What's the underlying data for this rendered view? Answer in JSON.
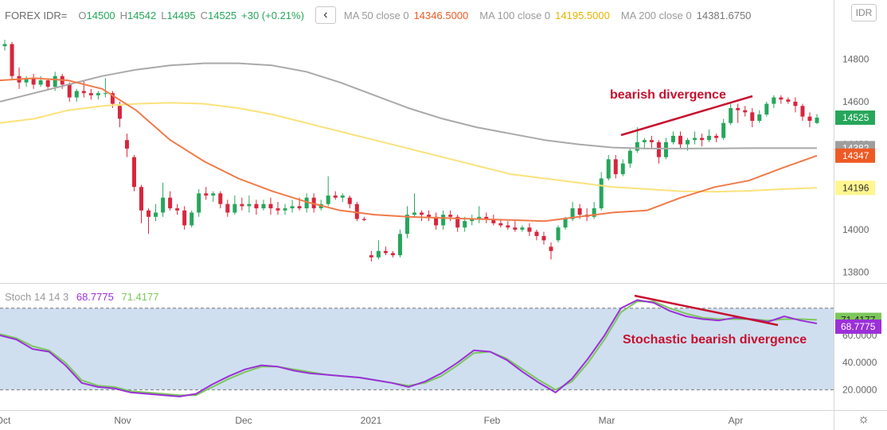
{
  "header": {
    "symbol": "FOREX IDR=",
    "o_label": "O",
    "o_value": "14500",
    "h_label": "H",
    "h_value": "14542",
    "l_label": "L",
    "l_value": "14495",
    "c_label": "C",
    "c_value": "14525",
    "change": "+30 (+0.21%)",
    "collapse_icon": "‹",
    "ma50_label": "MA 50 close 0",
    "ma50_value": "14346.5000",
    "ma100_label": "MA 100 close 0",
    "ma100_value": "14195.5000",
    "ma200_label": "MA 200 close 0",
    "ma200_value": "14381.6750",
    "currency_button": "IDR"
  },
  "colors": {
    "up": "#26a65b",
    "down": "#d7263d",
    "ma50": "#f07a4a",
    "ma100": "#fbe27a",
    "ma200": "#a9a9a9",
    "stoch_k": "#9b30d9",
    "stoch_d": "#7cc85a",
    "band": "#cfdff0",
    "annotation": "#c8102e",
    "badge_price": "#26a65b",
    "badge_ma200": "#9e9e9e",
    "badge_ma50": "#ee5a24",
    "badge_ma100": "#fff68f"
  },
  "stoch_header": {
    "label": "Stoch 14 14 3",
    "k_value": "68.7775",
    "d_value": "71.4177"
  },
  "annotations": {
    "price": "bearish divergence",
    "stoch": "Stochastic bearish divergence"
  },
  "gear_icon": "☼",
  "chart_data": [
    {
      "type": "candlestick",
      "x_ticks": [
        "Oct",
        "Nov",
        "Dec",
        "2021",
        "Feb",
        "Mar",
        "Apr"
      ],
      "y_ticks": [
        "14800",
        "14600",
        "14400",
        "14200",
        "14000",
        "13800"
      ],
      "ylim": [
        13750,
        14950
      ],
      "price_badges": {
        "last": "14525",
        "ma200": "14382",
        "ma50": "14347",
        "ma100": "14196"
      },
      "candles": [
        [
          14860,
          14890,
          14840,
          14870
        ],
        [
          14870,
          14880,
          14700,
          14720
        ],
        [
          14720,
          14760,
          14660,
          14690
        ],
        [
          14690,
          14720,
          14670,
          14710
        ],
        [
          14710,
          14730,
          14660,
          14680
        ],
        [
          14680,
          14720,
          14670,
          14700
        ],
        [
          14700,
          14710,
          14660,
          14670
        ],
        [
          14670,
          14740,
          14650,
          14720
        ],
        [
          14720,
          14730,
          14660,
          14680
        ],
        [
          14680,
          14690,
          14600,
          14620
        ],
        [
          14620,
          14660,
          14600,
          14650
        ],
        [
          14650,
          14700,
          14620,
          14640
        ],
        [
          14640,
          14660,
          14610,
          14630
        ],
        [
          14630,
          14650,
          14610,
          14640
        ],
        [
          14640,
          14710,
          14620,
          14640
        ],
        [
          14640,
          14650,
          14570,
          14590
        ],
        [
          14580,
          14600,
          14480,
          14520
        ],
        [
          14420,
          14450,
          14340,
          14380
        ],
        [
          14340,
          14350,
          14180,
          14200
        ],
        [
          14200,
          14210,
          14030,
          14090
        ],
        [
          14090,
          14100,
          13980,
          14060
        ],
        [
          14060,
          14120,
          14040,
          14080
        ],
        [
          14080,
          14220,
          14060,
          14150
        ],
        [
          14150,
          14180,
          14090,
          14100
        ],
        [
          14100,
          14120,
          14070,
          14090
        ],
        [
          14090,
          14110,
          14000,
          14020
        ],
        [
          14020,
          14090,
          14010,
          14080
        ],
        [
          14080,
          14190,
          14060,
          14170
        ],
        [
          14170,
          14200,
          14140,
          14160
        ],
        [
          14160,
          14180,
          14130,
          14170
        ],
        [
          14170,
          14180,
          14100,
          14120
        ],
        [
          14120,
          14140,
          14060,
          14080
        ],
        [
          14080,
          14160,
          14070,
          14120
        ],
        [
          14120,
          14150,
          14090,
          14110
        ],
        [
          14110,
          14160,
          14080,
          14120
        ],
        [
          14120,
          14140,
          14070,
          14100
        ],
        [
          14100,
          14140,
          14090,
          14120
        ],
        [
          14120,
          14150,
          14070,
          14100
        ],
        [
          14100,
          14130,
          14070,
          14090
        ],
        [
          14090,
          14120,
          14070,
          14100
        ],
        [
          14100,
          14140,
          14080,
          14110
        ],
        [
          14110,
          14150,
          14090,
          14100
        ],
        [
          14100,
          14170,
          14080,
          14150
        ],
        [
          14150,
          14170,
          14080,
          14100
        ],
        [
          14100,
          14140,
          14090,
          14120
        ],
        [
          14120,
          14250,
          14110,
          14160
        ],
        [
          14160,
          14180,
          14140,
          14150
        ],
        [
          14150,
          14170,
          14130,
          14160
        ],
        [
          14150,
          14160,
          14100,
          14120
        ],
        [
          14120,
          14130,
          14040,
          14050
        ],
        [
          14050,
          14060,
          14040,
          14045
        ],
        [
          13880,
          13900,
          13850,
          13870
        ],
        [
          13870,
          13950,
          13860,
          13900
        ],
        [
          13900,
          13920,
          13880,
          13890
        ],
        [
          13890,
          13900,
          13870,
          13880
        ],
        [
          13880,
          14000,
          13870,
          13980
        ],
        [
          13980,
          14110,
          13960,
          14070
        ],
        [
          14070,
          14170,
          14060,
          14080
        ],
        [
          14080,
          14090,
          14040,
          14070
        ],
        [
          14070,
          14090,
          14040,
          14060
        ],
        [
          14060,
          14080,
          14000,
          14020
        ],
        [
          14020,
          14090,
          14000,
          14070
        ],
        [
          14070,
          14090,
          14040,
          14060
        ],
        [
          14060,
          14070,
          13990,
          14010
        ],
        [
          14010,
          14060,
          13990,
          14040
        ],
        [
          14040,
          14070,
          14020,
          14050
        ],
        [
          14050,
          14110,
          14030,
          14060
        ],
        [
          14060,
          14080,
          14030,
          14050
        ],
        [
          14050,
          14070,
          14020,
          14030
        ],
        [
          14030,
          14050,
          14010,
          14020
        ],
        [
          14020,
          14040,
          14000,
          14010
        ],
        [
          14010,
          14040,
          13990,
          14000
        ],
        [
          14000,
          14020,
          13990,
          14010
        ],
        [
          14010,
          14030,
          13970,
          13990
        ],
        [
          13990,
          14000,
          13950,
          13970
        ],
        [
          13970,
          13990,
          13930,
          13950
        ],
        [
          13920,
          13940,
          13860,
          13900
        ],
        [
          13950,
          14020,
          13940,
          14010
        ],
        [
          14010,
          14060,
          14000,
          14050
        ],
        [
          14050,
          14130,
          14040,
          14100
        ],
        [
          14100,
          14120,
          14050,
          14070
        ],
        [
          14070,
          14100,
          14040,
          14060
        ],
        [
          14060,
          14130,
          14050,
          14100
        ],
        [
          14100,
          14270,
          14090,
          14240
        ],
        [
          14240,
          14350,
          14230,
          14330
        ],
        [
          14330,
          14350,
          14240,
          14260
        ],
        [
          14260,
          14330,
          14250,
          14310
        ],
        [
          14310,
          14380,
          14290,
          14370
        ],
        [
          14370,
          14480,
          14360,
          14410
        ],
        [
          14410,
          14430,
          14380,
          14420
        ],
        [
          14420,
          14440,
          14380,
          14410
        ],
        [
          14410,
          14420,
          14310,
          14340
        ],
        [
          14340,
          14430,
          14330,
          14410
        ],
        [
          14410,
          14460,
          14400,
          14440
        ],
        [
          14440,
          14460,
          14380,
          14400
        ],
        [
          14400,
          14430,
          14370,
          14420
        ],
        [
          14420,
          14460,
          14400,
          14430
        ],
        [
          14430,
          14450,
          14390,
          14420
        ],
        [
          14420,
          14470,
          14410,
          14440
        ],
        [
          14440,
          14450,
          14410,
          14430
        ],
        [
          14430,
          14520,
          14420,
          14500
        ],
        [
          14500,
          14590,
          14490,
          14570
        ],
        [
          14570,
          14590,
          14500,
          14560
        ],
        [
          14560,
          14580,
          14530,
          14550
        ],
        [
          14550,
          14570,
          14480,
          14510
        ],
        [
          14510,
          14560,
          14500,
          14540
        ],
        [
          14540,
          14600,
          14530,
          14590
        ],
        [
          14590,
          14630,
          14570,
          14620
        ],
        [
          14620,
          14630,
          14590,
          14610
        ],
        [
          14610,
          14620,
          14590,
          14600
        ],
        [
          14600,
          14620,
          14550,
          14580
        ],
        [
          14580,
          14590,
          14510,
          14530
        ],
        [
          14530,
          14550,
          14480,
          14510
        ],
        [
          14500,
          14542,
          14495,
          14525
        ]
      ],
      "ma50": [
        14700,
        14710,
        14700,
        14660,
        14560,
        14420,
        14320,
        14240,
        14180,
        14130,
        14090,
        14070,
        14060,
        14055,
        14050,
        14045,
        14040,
        14060,
        14080,
        14090,
        14150,
        14200,
        14230,
        14290,
        14347
      ],
      "ma100": [
        14500,
        14520,
        14560,
        14580,
        14590,
        14595,
        14590,
        14570,
        14540,
        14500,
        14460,
        14420,
        14380,
        14340,
        14300,
        14260,
        14240,
        14220,
        14200,
        14190,
        14180,
        14178,
        14182,
        14190,
        14196
      ],
      "ma200": [
        14600,
        14640,
        14680,
        14720,
        14750,
        14770,
        14780,
        14780,
        14770,
        14740,
        14690,
        14630,
        14570,
        14520,
        14480,
        14450,
        14420,
        14400,
        14385,
        14380,
        14380,
        14381,
        14382,
        14382,
        14382
      ]
    },
    {
      "type": "line",
      "name": "Stoch 14 14 3",
      "y_ticks": [
        "60.0000",
        "40.0000",
        "20.0000"
      ],
      "ylim": [
        5,
        98
      ],
      "bands": [
        20,
        80
      ],
      "series": [
        {
          "name": "%K",
          "values": [
            60,
            57,
            50,
            48,
            38,
            25,
            22,
            21,
            18,
            17,
            16,
            15,
            17,
            24,
            30,
            35,
            38,
            37,
            34,
            32,
            31,
            30,
            29,
            27,
            25,
            22,
            26,
            32,
            40,
            49,
            48,
            42,
            33,
            25,
            18,
            28,
            43,
            60,
            80,
            86,
            84,
            78,
            74,
            72,
            71,
            73,
            72,
            70,
            74,
            71,
            68.7775
          ]
        },
        {
          "name": "%D",
          "values": [
            61,
            58,
            52,
            49,
            40,
            27,
            23,
            22,
            19,
            18,
            17,
            16,
            16,
            22,
            28,
            33,
            37,
            37,
            35,
            33,
            31,
            30,
            29,
            27,
            25,
            23,
            25,
            30,
            38,
            47,
            48,
            43,
            35,
            27,
            20,
            26,
            40,
            57,
            77,
            85,
            85,
            80,
            76,
            73,
            72,
            72,
            72,
            71,
            72,
            72,
            71.4177
          ]
        }
      ],
      "last_badges": {
        "d": "71.4177",
        "k": "68.7775"
      }
    }
  ]
}
